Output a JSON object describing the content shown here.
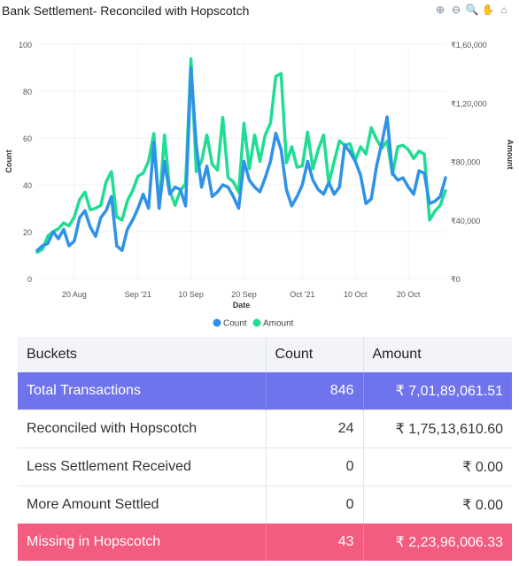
{
  "header": {
    "title": "Bank Settlement- Reconciled with Hopscotch",
    "toolbar": [
      {
        "name": "zoom-in-icon",
        "glyph": "⊕"
      },
      {
        "name": "zoom-out-icon",
        "glyph": "⊖"
      },
      {
        "name": "magnifier-icon",
        "glyph": "🔍"
      },
      {
        "name": "pan-hand-icon",
        "glyph": "✋"
      },
      {
        "name": "home-icon",
        "glyph": "⌂"
      }
    ]
  },
  "chart_data": {
    "type": "line",
    "xlabel": "Date",
    "ylabel_left": "Count",
    "ylabel_right": "Amount",
    "x_ticks": [
      "20 Aug",
      "Sep '21",
      "10 Sep",
      "20 Sep",
      "Oct '21",
      "10 Oct",
      "20 Oct"
    ],
    "x_tick_days": [
      7,
      19,
      29,
      39,
      50,
      60,
      70
    ],
    "y_left_ticks": [
      "0",
      "20",
      "40",
      "60",
      "80",
      "100"
    ],
    "y_right_ticks": [
      "₹0",
      "₹40,000",
      "₹80,000",
      "₹1,20,000",
      "₹1,60,000"
    ],
    "ylim_left": [
      0,
      100
    ],
    "ylim_right": [
      0,
      160000
    ],
    "x_range": [
      0,
      77
    ],
    "legend_position": "bottom",
    "series": [
      {
        "name": "Count",
        "color": "#2f92e8",
        "axis": "left",
        "values": [
          12,
          14,
          15,
          20,
          17,
          21,
          14,
          16,
          26,
          29,
          22,
          18,
          26,
          29,
          35,
          14,
          12,
          21,
          25,
          30,
          36,
          30,
          58,
          30,
          50,
          36,
          39,
          38,
          31,
          90,
          57,
          39,
          48,
          35,
          37,
          40,
          39,
          35,
          30,
          50,
          42,
          39,
          37,
          43,
          50,
          62,
          55,
          38,
          31,
          35,
          40,
          50,
          42,
          38,
          36,
          41,
          36,
          39,
          57,
          54,
          50,
          44,
          32,
          34,
          48,
          58,
          69,
          45,
          42,
          43,
          39,
          36,
          46,
          45,
          32,
          33,
          35,
          43
        ]
      },
      {
        "name": "Amount",
        "color": "#20dd93",
        "axis": "right",
        "values": [
          18000,
          20000,
          29000,
          32000,
          34000,
          38000,
          36000,
          42000,
          54000,
          59000,
          47000,
          48000,
          50000,
          66000,
          73000,
          42000,
          40000,
          53000,
          60000,
          70000,
          72000,
          80000,
          99000,
          48000,
          98000,
          60000,
          50000,
          60000,
          65000,
          150000,
          73000,
          80000,
          98000,
          78000,
          74000,
          110000,
          69000,
          66000,
          59000,
          106000,
          75000,
          98000,
          80000,
          98000,
          106000,
          138000,
          140000,
          79000,
          90000,
          76000,
          77000,
          100000,
          75000,
          88000,
          98000,
          65000,
          80000,
          94000,
          91000,
          92000,
          81000,
          90000,
          85000,
          103000,
          95000,
          89000,
          94000,
          71000,
          90000,
          91000,
          88000,
          82000,
          87000,
          85000,
          40000,
          46000,
          50000,
          60000
        ]
      }
    ]
  },
  "table": {
    "headers": [
      "Buckets",
      "Count",
      "Amount"
    ],
    "rows": [
      {
        "bucket": "Total Transactions",
        "count": "846",
        "amount": "₹ 7,01,89,061.51",
        "style": "blue"
      },
      {
        "bucket": "Reconciled with Hopscotch",
        "count": "24",
        "amount": "₹ 1,75,13,610.60",
        "style": "plain"
      },
      {
        "bucket": "Less Settlement Received",
        "count": "0",
        "amount": "₹ 0.00",
        "style": "plain"
      },
      {
        "bucket": "More Amount Settled",
        "count": "0",
        "amount": "₹ 0.00",
        "style": "plain"
      },
      {
        "bucket": "Missing in  Hopscotch",
        "count": "43",
        "amount": "₹ 2,23,96,006.33",
        "style": "pink"
      }
    ]
  }
}
